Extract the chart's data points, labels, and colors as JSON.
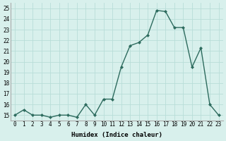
{
  "x": [
    0,
    1,
    2,
    3,
    4,
    5,
    6,
    7,
    8,
    9,
    10,
    11,
    12,
    13,
    14,
    15,
    16,
    17,
    18,
    19,
    20,
    21,
    22,
    23
  ],
  "y": [
    15.0,
    15.5,
    15.0,
    15.0,
    14.8,
    15.0,
    15.0,
    14.8,
    16.0,
    15.0,
    16.5,
    16.5,
    19.5,
    21.5,
    21.8,
    22.5,
    24.8,
    24.7,
    23.2,
    23.2,
    19.5,
    21.3,
    16.0,
    15.0
  ],
  "line_color": "#2d6b5e",
  "marker_color": "#2d6b5e",
  "bg_color": "#d8f0ec",
  "grid_color": "#b8ddd8",
  "xlabel": "Humidex (Indice chaleur)",
  "ylim": [
    14.5,
    25.5
  ],
  "xlim": [
    -0.5,
    23.5
  ],
  "yticks": [
    15,
    16,
    17,
    18,
    19,
    20,
    21,
    22,
    23,
    24,
    25
  ],
  "xtick_labels": [
    "0",
    "1",
    "2",
    "3",
    "4",
    "5",
    "6",
    "7",
    "8",
    "9",
    "10",
    "11",
    "12",
    "13",
    "14",
    "15",
    "16",
    "17",
    "18",
    "19",
    "20",
    "21",
    "22",
    "23"
  ],
  "xlabel_fontsize": 6.5,
  "tick_fontsize": 5.5,
  "linewidth": 1.0,
  "markersize": 2.0
}
